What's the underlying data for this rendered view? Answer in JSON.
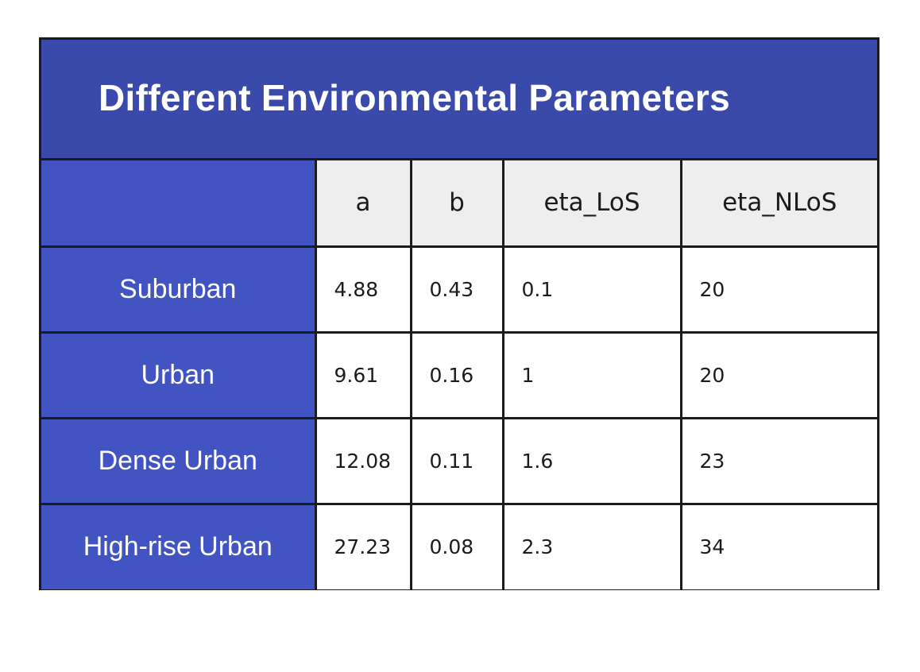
{
  "chart_data": {
    "type": "table",
    "title": "Different Environmental Parameters",
    "columns": [
      "",
      "a",
      "b",
      "eta_LoS",
      "eta_NLoS"
    ],
    "rows": [
      {
        "label": "Suburban",
        "a": "4.88",
        "b": "0.43",
        "eta_LoS": "0.1",
        "eta_NLoS": "20"
      },
      {
        "label": "Urban",
        "a": "9.61",
        "b": "0.16",
        "eta_LoS": "1",
        "eta_NLoS": "20"
      },
      {
        "label": "Dense Urban",
        "a": "12.08",
        "b": "0.11",
        "eta_LoS": "1.6",
        "eta_NLoS": "23"
      },
      {
        "label": "High-rise Urban",
        "a": "27.23",
        "b": "0.08",
        "eta_LoS": "2.3",
        "eta_NLoS": "34"
      }
    ]
  },
  "colors": {
    "title_background": "#3a4aab",
    "label_background": "#4253c2",
    "header_background": "#eeeeee",
    "border": "#1b1b1b"
  }
}
